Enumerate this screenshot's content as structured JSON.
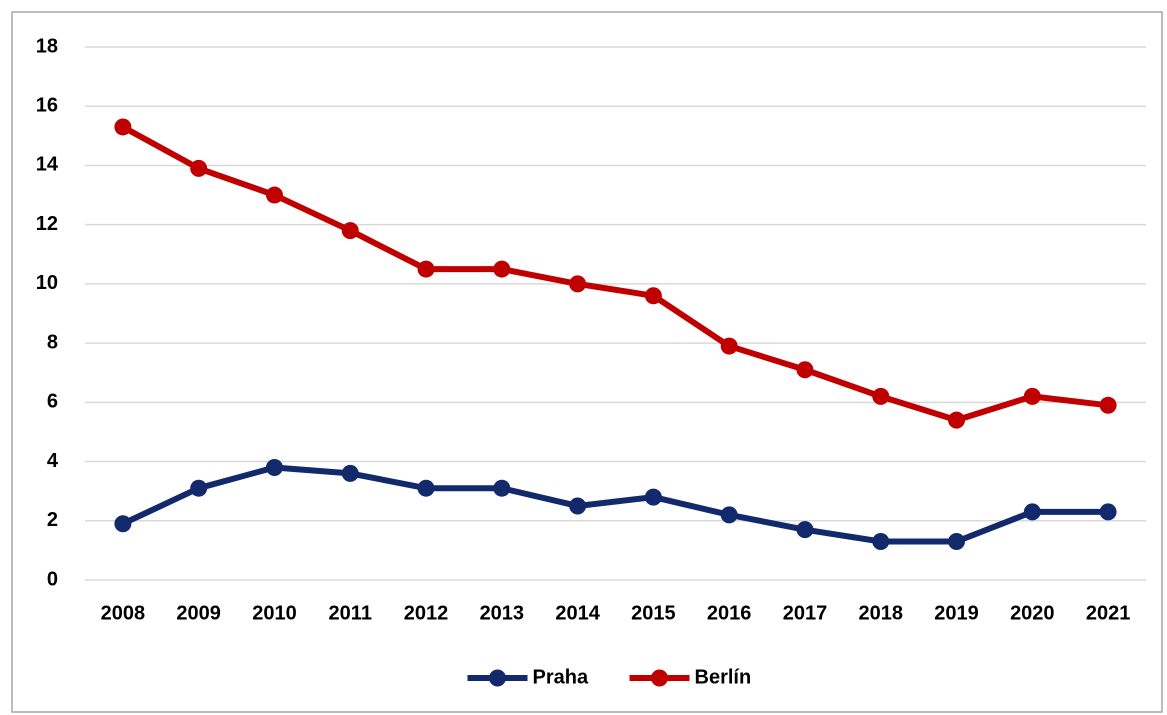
{
  "chart_data": {
    "type": "line",
    "categories": [
      "2008",
      "2009",
      "2010",
      "2011",
      "2012",
      "2013",
      "2014",
      "2015",
      "2016",
      "2017",
      "2018",
      "2019",
      "2020",
      "2021"
    ],
    "series": [
      {
        "name": "Praha",
        "color": "#12296b",
        "values": [
          1.9,
          3.1,
          3.8,
          3.6,
          3.1,
          3.1,
          2.5,
          2.8,
          2.2,
          1.7,
          1.3,
          1.3,
          2.3,
          2.3
        ]
      },
      {
        "name": "Berlín",
        "color": "#c00000",
        "values": [
          15.3,
          13.9,
          13.0,
          11.8,
          10.5,
          10.5,
          10.0,
          9.6,
          7.9,
          7.1,
          6.2,
          5.4,
          6.2,
          5.9
        ]
      }
    ],
    "ylim": [
      0,
      18
    ],
    "yticks": [
      0,
      2,
      4,
      6,
      8,
      10,
      12,
      14,
      16,
      18
    ],
    "grid": true,
    "legend": "bottom"
  }
}
